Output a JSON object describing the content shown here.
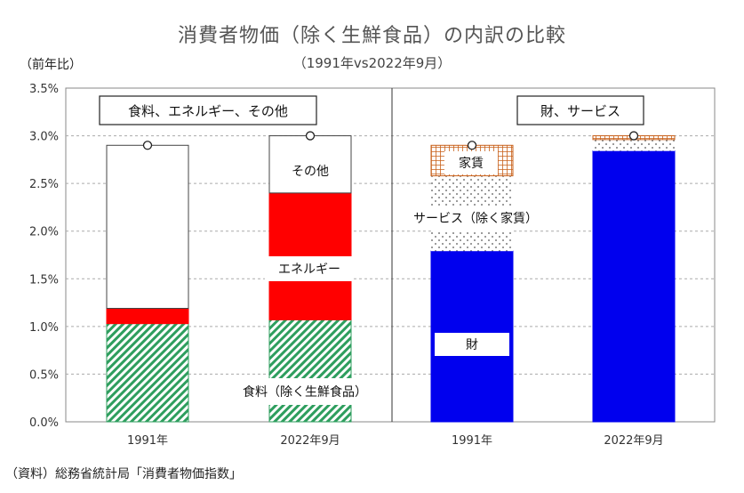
{
  "title": "消費者物価（除く生鮮食品）の内訳の比較",
  "subtitle": "（1991年vs2022年9月）",
  "y_unit": "（前年比）",
  "source": "（資料）総務省統計局「消費者物価指数」",
  "panels": [
    {
      "label": "食料、エネルギー、その他"
    },
    {
      "label": "財、サービス"
    }
  ],
  "colors": {
    "food": "#2e9e5e",
    "energy": "#ff0000",
    "other": "#ffffff",
    "goods": "#0000ee",
    "services_dots": "#555555",
    "rent": "#c8601a"
  },
  "chart_data": {
    "type": "bar",
    "stacked": true,
    "ylabel": "（前年比）",
    "ylim": [
      0,
      3.5
    ],
    "yticks": [
      "0.0%",
      "0.5%",
      "1.0%",
      "1.5%",
      "2.0%",
      "2.5%",
      "3.0%",
      "3.5%"
    ],
    "grid": true,
    "categories": [
      "1991年",
      "2022年9月",
      "1991年",
      "2022年9月"
    ],
    "series": [
      {
        "name": "食料（除く生鮮食品）",
        "panel": 0,
        "pattern": "diagonal-hatch",
        "values": [
          1.03,
          1.07,
          null,
          null
        ]
      },
      {
        "name": "エネルギー",
        "panel": 0,
        "pattern": "solid",
        "values": [
          0.16,
          1.33,
          null,
          null
        ]
      },
      {
        "name": "その他",
        "panel": 0,
        "pattern": "none",
        "values": [
          1.71,
          0.6,
          null,
          null
        ]
      },
      {
        "name": "財",
        "panel": 1,
        "pattern": "solid",
        "values": [
          null,
          null,
          1.79,
          2.84
        ]
      },
      {
        "name": "サービス（除く家賃）",
        "panel": 1,
        "pattern": "dots",
        "values": [
          null,
          null,
          0.79,
          0.12
        ]
      },
      {
        "name": "家賃",
        "panel": 1,
        "pattern": "grid",
        "values": [
          null,
          null,
          0.32,
          0.04
        ]
      }
    ],
    "totals": [
      2.9,
      3.0,
      2.9,
      3.0
    ],
    "segment_labels": [
      "その他",
      "エネルギー",
      "食料（除く生鮮食品）",
      "家賃",
      "サービス（除く家賃）",
      "財"
    ]
  }
}
